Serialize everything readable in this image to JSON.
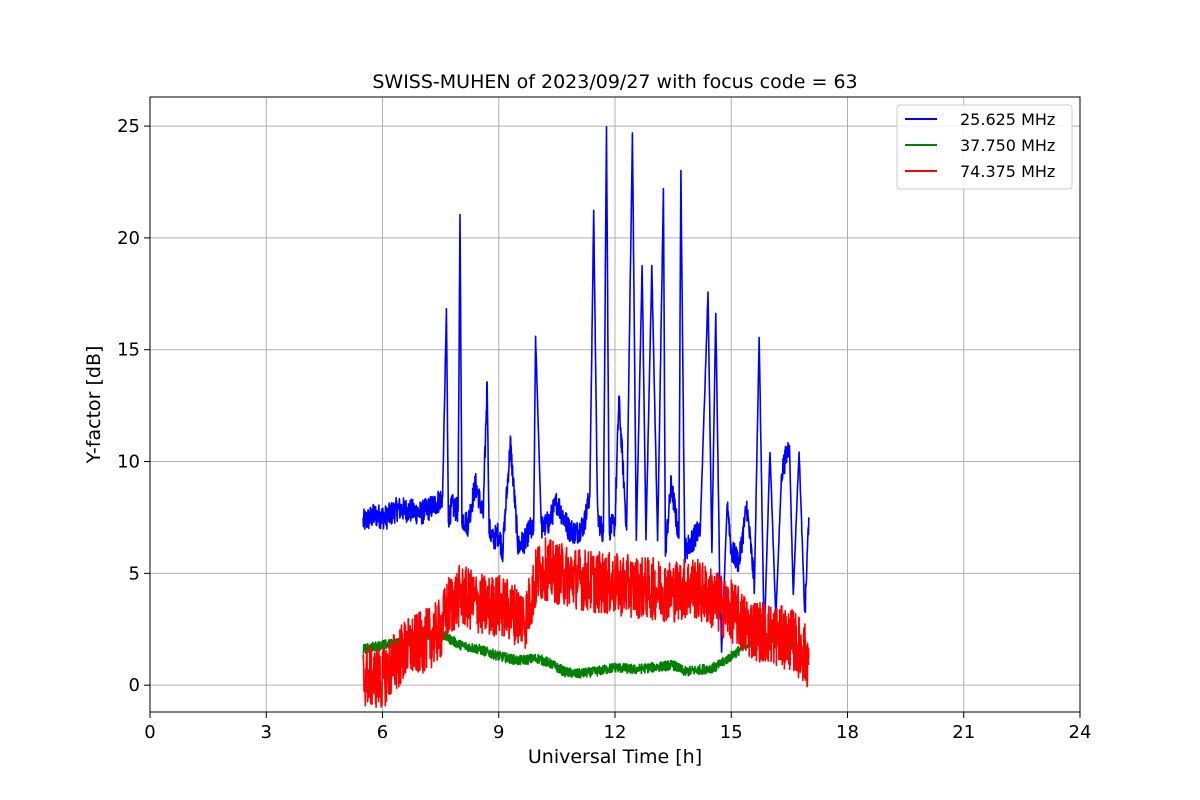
{
  "chart_data": {
    "type": "line",
    "title": "SWISS-MUHEN of 2023/09/27 with focus code = 63",
    "xlabel": "Universal Time [h]",
    "ylabel": "Y-factor [dB]",
    "xlim": [
      0,
      24
    ],
    "ylim": [
      -1.2,
      26.3
    ],
    "xticks": [
      0,
      3,
      6,
      9,
      12,
      15,
      18,
      21,
      24
    ],
    "yticks": [
      0,
      5,
      10,
      15,
      20,
      25
    ],
    "grid": true,
    "legend_position": "top-right",
    "series": [
      {
        "name": "25.625 MHz",
        "color": "#0000ff",
        "x": [
          5.5,
          5.8,
          6.1,
          6.4,
          6.7,
          7.0,
          7.3,
          7.55,
          7.65,
          7.7,
          7.8,
          7.95,
          8.0,
          8.05,
          8.2,
          8.4,
          8.6,
          8.7,
          8.75,
          8.85,
          9.0,
          9.1,
          9.3,
          9.5,
          9.7,
          9.8,
          9.9,
          9.95,
          10.1,
          10.3,
          10.5,
          10.8,
          11.0,
          11.2,
          11.35,
          11.45,
          11.55,
          11.7,
          11.78,
          11.85,
          12.0,
          12.1,
          12.3,
          12.45,
          12.55,
          12.7,
          12.8,
          12.95,
          13.1,
          13.25,
          13.3,
          13.45,
          13.65,
          13.7,
          13.8,
          14.0,
          14.2,
          14.4,
          14.5,
          14.6,
          14.7,
          14.75,
          14.9,
          15.0,
          15.2,
          15.4,
          15.6,
          15.72,
          15.85,
          16.0,
          16.15,
          16.3,
          16.5,
          16.6,
          16.75,
          16.9,
          17.0
        ],
        "values": [
          7.3,
          7.6,
          7.5,
          7.9,
          7.8,
          7.7,
          8.0,
          8.4,
          16.8,
          7.5,
          8.0,
          7.8,
          21.0,
          7.5,
          7.2,
          9.0,
          7.6,
          13.6,
          7.0,
          6.5,
          6.8,
          6.0,
          10.8,
          6.2,
          6.5,
          7.0,
          6.8,
          15.6,
          7.0,
          7.3,
          8.2,
          7.0,
          6.8,
          7.2,
          8.5,
          21.2,
          7.5,
          6.8,
          25.0,
          7.0,
          7.2,
          12.8,
          7.0,
          24.7,
          6.5,
          18.7,
          6.6,
          18.7,
          6.5,
          22.2,
          6.0,
          9.0,
          6.6,
          23.0,
          6.0,
          6.5,
          7.0,
          17.5,
          6.0,
          16.7,
          5.0,
          1.4,
          8.3,
          6.0,
          5.5,
          8.0,
          4.5,
          15.6,
          2.0,
          10.5,
          3.0,
          9.5,
          10.8,
          4.0,
          10.5,
          3.0,
          7.5
        ]
      },
      {
        "name": "37.750 MHz",
        "color": "#008000",
        "x": [
          5.5,
          6.0,
          6.5,
          7.0,
          7.5,
          7.8,
          8.0,
          8.5,
          9.0,
          9.5,
          10.0,
          10.3,
          10.7,
          11.0,
          11.5,
          12.0,
          12.5,
          13.0,
          13.5,
          13.8,
          14.2,
          14.6,
          15.0,
          15.4,
          15.8,
          16.2,
          16.6,
          17.0
        ],
        "values": [
          1.6,
          1.8,
          1.9,
          2.1,
          2.3,
          2.0,
          1.8,
          1.6,
          1.3,
          1.1,
          1.2,
          1.0,
          0.6,
          0.5,
          0.6,
          0.8,
          0.7,
          0.8,
          0.9,
          0.6,
          0.7,
          0.8,
          1.3,
          1.8,
          2.2,
          2.0,
          1.7,
          0.9
        ]
      },
      {
        "name": "74.375 MHz",
        "color": "#ff0000",
        "x": [
          5.5,
          6.0,
          6.3,
          6.6,
          7.0,
          7.3,
          7.5,
          7.7,
          8.0,
          8.3,
          8.7,
          9.0,
          9.3,
          9.7,
          10.0,
          10.2,
          10.5,
          11.0,
          11.5,
          12.0,
          12.5,
          13.0,
          13.5,
          14.0,
          14.4,
          14.8,
          15.1,
          15.4,
          15.8,
          16.2,
          16.6,
          17.0
        ],
        "values": [
          0.4,
          0.3,
          1.0,
          1.6,
          1.9,
          2.2,
          2.5,
          3.5,
          4.0,
          3.8,
          3.5,
          3.6,
          3.3,
          3.0,
          5.0,
          5.2,
          5.0,
          4.8,
          4.6,
          4.5,
          4.4,
          4.3,
          4.2,
          4.4,
          4.0,
          3.5,
          3.2,
          2.6,
          2.4,
          2.2,
          2.0,
          1.2
        ]
      }
    ]
  }
}
